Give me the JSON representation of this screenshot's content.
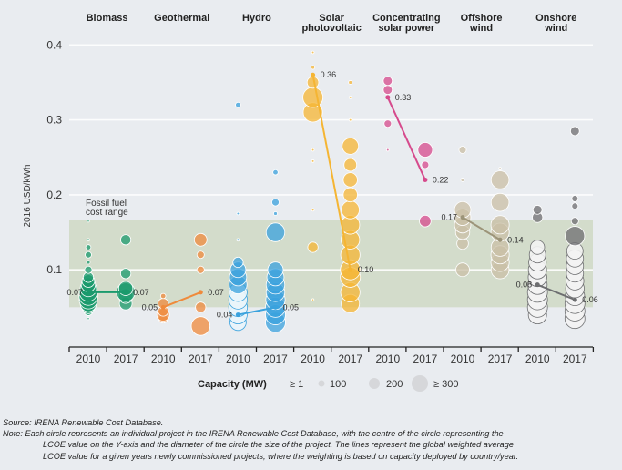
{
  "chart_data": {
    "type": "scatter",
    "title": "",
    "ylabel": "2016 USD/kWh",
    "xlabel": "",
    "ylim": [
      0,
      0.4
    ],
    "yticks": [
      0.1,
      0.2,
      0.3,
      0.4
    ],
    "ytick_labels": [
      "0.1",
      "0.2",
      "0.3",
      "0.4"
    ],
    "grid": true,
    "technologies": [
      {
        "name": "Biomass",
        "color": "#1a9a6c",
        "years": [
          "2010",
          "2017"
        ],
        "weighted_avg": [
          0.07,
          0.07
        ],
        "avg_labels": [
          "0.07",
          "0.07"
        ]
      },
      {
        "name": "Geothermal",
        "color": "#ef8a3b",
        "years": [
          "2010",
          "2017"
        ],
        "weighted_avg": [
          0.05,
          0.07
        ],
        "avg_labels": [
          "0.05",
          "0.07"
        ]
      },
      {
        "name": "Hydro",
        "color": "#3aa2dd",
        "years": [
          "2010",
          "2017"
        ],
        "weighted_avg": [
          0.04,
          0.05
        ],
        "avg_labels": [
          "0.04",
          "0.05"
        ]
      },
      {
        "name": "Solar photovoltaic",
        "color": "#f5b533",
        "years": [
          "2010",
          "2017"
        ],
        "weighted_avg": [
          0.36,
          0.1
        ],
        "avg_labels": [
          "0.36",
          "0.10"
        ]
      },
      {
        "name": "Concentrating solar power",
        "color": "#d64a8c",
        "years": [
          "2010",
          "2017"
        ],
        "weighted_avg": [
          0.33,
          0.22
        ],
        "avg_labels": [
          "0.33",
          "0.22"
        ]
      },
      {
        "name": "Offshore wind",
        "color": "#c9bfa6",
        "years": [
          "2010",
          "2017"
        ],
        "weighted_avg": [
          0.17,
          0.14
        ],
        "avg_labels": [
          "0.17",
          "0.14"
        ]
      },
      {
        "name": "Onshore wind",
        "color": "#6d6e70",
        "years": [
          "2010",
          "2017"
        ],
        "weighted_avg": [
          0.08,
          0.06
        ],
        "avg_labels": [
          "0.08",
          "0.06"
        ]
      }
    ],
    "tech_labels": [
      [
        "Biomass"
      ],
      [
        "Geothermal"
      ],
      [
        "Hydro"
      ],
      [
        "Solar",
        "photovoltaic"
      ],
      [
        "Concentrating",
        "solar power"
      ],
      [
        "Offshore",
        "wind"
      ],
      [
        "Onshore",
        "wind"
      ]
    ],
    "project_points": [
      {
        "tech": 0,
        "year": 0,
        "values": [
          0.035,
          0.04,
          0.045,
          0.05,
          0.055,
          0.06,
          0.065,
          0.07,
          0.075,
          0.08,
          0.085,
          0.09,
          0.1,
          0.11,
          0.12,
          0.13,
          0.14,
          0.165
        ],
        "sizes": [
          1,
          1,
          60,
          120,
          200,
          250,
          260,
          240,
          200,
          150,
          120,
          80,
          40,
          10,
          30,
          20,
          5,
          1
        ]
      },
      {
        "tech": 0,
        "year": 1,
        "values": [
          0.055,
          0.065,
          0.07,
          0.075,
          0.095,
          0.14
        ],
        "sizes": [
          120,
          160,
          260,
          150,
          80,
          80
        ]
      },
      {
        "tech": 1,
        "year": 0,
        "values": [
          0.035,
          0.04,
          0.045,
          0.055,
          0.065
        ],
        "sizes": [
          60,
          120,
          80,
          80,
          20
        ]
      },
      {
        "tech": 1,
        "year": 1,
        "values": [
          0.025,
          0.05,
          0.1,
          0.12,
          0.14
        ],
        "sizes": [
          260,
          80,
          40,
          40,
          120
        ]
      },
      {
        "tech": 2,
        "year": 0,
        "values": [
          0.03,
          0.04,
          0.05,
          0.06,
          0.07,
          0.08,
          0.09,
          0.1,
          0.11,
          0.14,
          0.175,
          0.32
        ],
        "sizes": [
          200,
          250,
          260,
          260,
          250,
          240,
          220,
          180,
          80,
          5,
          5,
          20
        ]
      },
      {
        "tech": 2,
        "year": 1,
        "values": [
          0.03,
          0.04,
          0.05,
          0.06,
          0.07,
          0.08,
          0.09,
          0.1,
          0.15,
          0.175,
          0.19,
          0.23
        ],
        "sizes": [
          300,
          300,
          300,
          280,
          260,
          260,
          220,
          180,
          260,
          10,
          40,
          20
        ]
      },
      {
        "tech": 3,
        "year": 0,
        "values": [
          0.06,
          0.13,
          0.18,
          0.245,
          0.26,
          0.31,
          0.33,
          0.35,
          0.37,
          0.39
        ],
        "sizes": [
          1,
          80,
          5,
          5,
          5,
          280,
          300,
          100,
          10,
          5
        ]
      },
      {
        "tech": 3,
        "year": 1,
        "values": [
          0.055,
          0.07,
          0.09,
          0.1,
          0.12,
          0.14,
          0.16,
          0.18,
          0.2,
          0.22,
          0.24,
          0.265,
          0.3,
          0.33,
          0.35
        ],
        "sizes": [
          250,
          280,
          300,
          300,
          280,
          260,
          260,
          240,
          150,
          150,
          120,
          200,
          5,
          5,
          10
        ]
      },
      {
        "tech": 4,
        "year": 0,
        "values": [
          0.26,
          0.295,
          0.34,
          0.352
        ],
        "sizes": [
          5,
          40,
          60,
          60
        ]
      },
      {
        "tech": 4,
        "year": 1,
        "values": [
          0.165,
          0.24,
          0.26
        ],
        "sizes": [
          100,
          40,
          160
        ]
      },
      {
        "tech": 5,
        "year": 0,
        "values": [
          0.1,
          0.135,
          0.15,
          0.16,
          0.17,
          0.18,
          0.22,
          0.26
        ],
        "sizes": [
          140,
          100,
          150,
          200,
          200,
          200,
          10,
          40
        ]
      },
      {
        "tech": 5,
        "year": 1,
        "values": [
          0.1,
          0.11,
          0.12,
          0.13,
          0.15,
          0.16,
          0.19,
          0.22,
          0.235
        ],
        "sizes": [
          240,
          250,
          250,
          240,
          250,
          250,
          240,
          240,
          5
        ]
      },
      {
        "tech": 6,
        "year": 0,
        "values": [
          0.04,
          0.05,
          0.06,
          0.07,
          0.08,
          0.09,
          0.1,
          0.11,
          0.12,
          0.13,
          0.17,
          0.18
        ],
        "sizes": [
          250,
          300,
          300,
          300,
          280,
          260,
          250,
          230,
          200,
          150,
          80,
          60
        ]
      },
      {
        "tech": 6,
        "year": 1,
        "values": [
          0.035,
          0.045,
          0.055,
          0.065,
          0.075,
          0.085,
          0.095,
          0.105,
          0.115,
          0.125,
          0.145,
          0.165,
          0.185,
          0.195,
          0.285
        ],
        "sizes": [
          300,
          300,
          300,
          280,
          260,
          240,
          220,
          220,
          220,
          200,
          280,
          40,
          30,
          30,
          60
        ]
      }
    ],
    "fossil_fuel_range": [
      0.05,
      0.167
    ],
    "fossil_fuel_label": [
      "Fossil fuel",
      "cost range"
    ],
    "legend": {
      "title": "Capacity (MW)",
      "entries": [
        "≥ 1",
        "100",
        "200",
        "≥ 300"
      ],
      "placement": "bottom-center"
    }
  },
  "notes": {
    "source": "Source: IRENA Renewable Cost Database.",
    "note_line1": "Note: Each circle represents an individual project in the IRENA Renewable Cost Database, with the centre of the circle representing the",
    "note_line2": "LCOE value on the Y-axis and the diameter of the circle the size of the project. The lines represent the global weighted average",
    "note_line3": "LCOE value for a given years newly commissioned projects, where the weighting is based on capacity deployed by country/year."
  }
}
